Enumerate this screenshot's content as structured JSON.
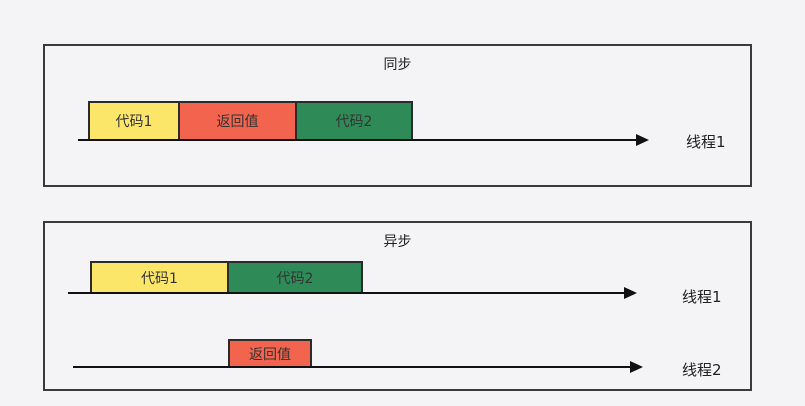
{
  "sync": {
    "title": "同步",
    "blocks": [
      {
        "label": "代码1",
        "color": "#fbe66a"
      },
      {
        "label": "返回值",
        "color": "#f2644e"
      },
      {
        "label": "代码2",
        "color": "#2e8b58"
      }
    ],
    "thread_label": "线程1"
  },
  "async": {
    "title": "异步",
    "thread1": {
      "blocks": [
        {
          "label": "代码1",
          "color": "#fbe66a"
        },
        {
          "label": "代码2",
          "color": "#2e8b58"
        }
      ],
      "label": "线程1"
    },
    "thread2": {
      "blocks": [
        {
          "label": "返回值",
          "color": "#f2644e"
        }
      ],
      "label": "线程2"
    }
  }
}
